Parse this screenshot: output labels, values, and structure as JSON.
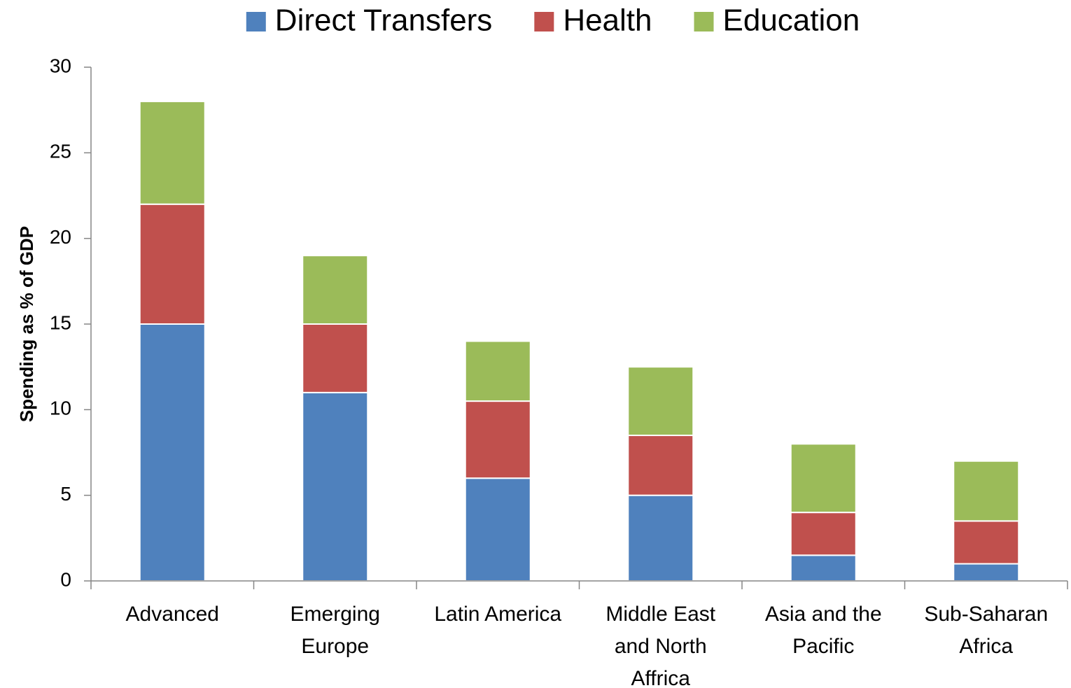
{
  "chart_data": {
    "type": "stacked_bar",
    "y_label": "Spending as % of GDP",
    "categories": [
      "Advanced",
      "Emerging Europe",
      "Latin America",
      "Middle East and North Affrica",
      "Asia and the Pacific",
      "Sub-Saharan Africa"
    ],
    "series": [
      {
        "name": "Direct Transfers",
        "color": "#4f81bd",
        "values": [
          15,
          11,
          6,
          5,
          1.5,
          1
        ]
      },
      {
        "name": "Health",
        "color": "#c0504d",
        "values": [
          7,
          4,
          4.5,
          3.5,
          2.5,
          2.5
        ]
      },
      {
        "name": "Education",
        "color": "#9bbb59",
        "values": [
          6,
          4,
          3.5,
          4,
          4,
          3.5
        ]
      }
    ],
    "ylim": [
      0,
      30
    ],
    "yticks": [
      0,
      5,
      10,
      15,
      20,
      25,
      30
    ],
    "legend": "top"
  }
}
